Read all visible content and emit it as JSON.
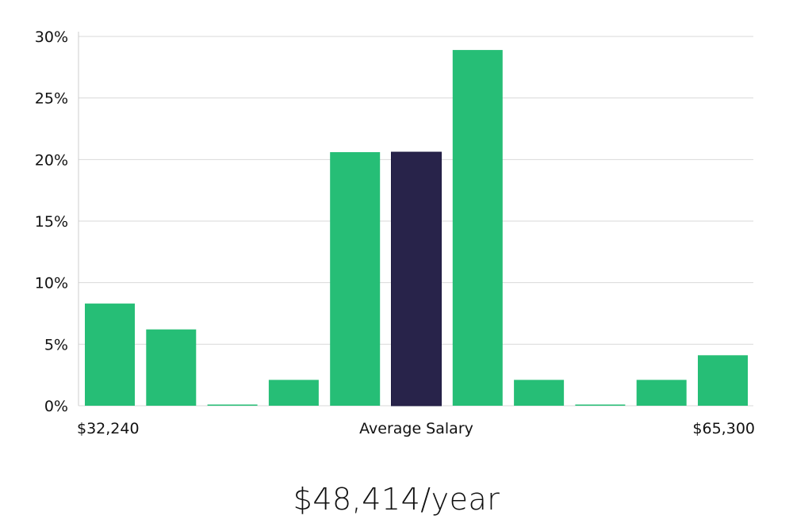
{
  "chart_data": {
    "type": "bar",
    "values": [
      8.3,
      6.2,
      0,
      2.1,
      20.6,
      20.6,
      28.9,
      2.1,
      0,
      2.1,
      4.1
    ],
    "highlight_index": 5,
    "y_ticks": [
      "0%",
      "5%",
      "10%",
      "15%",
      "20%",
      "25%",
      "30%"
    ],
    "ylim": [
      0,
      30
    ],
    "grid": true,
    "x_labels": {
      "left": "$32,240",
      "center": "Average Salary",
      "right": "$65,300"
    },
    "colors": {
      "bar": "#26be76",
      "highlight": "#28234a",
      "grid": "#d9d9d9",
      "axis": "#cccccc"
    }
  },
  "headline": "$48,414/year"
}
